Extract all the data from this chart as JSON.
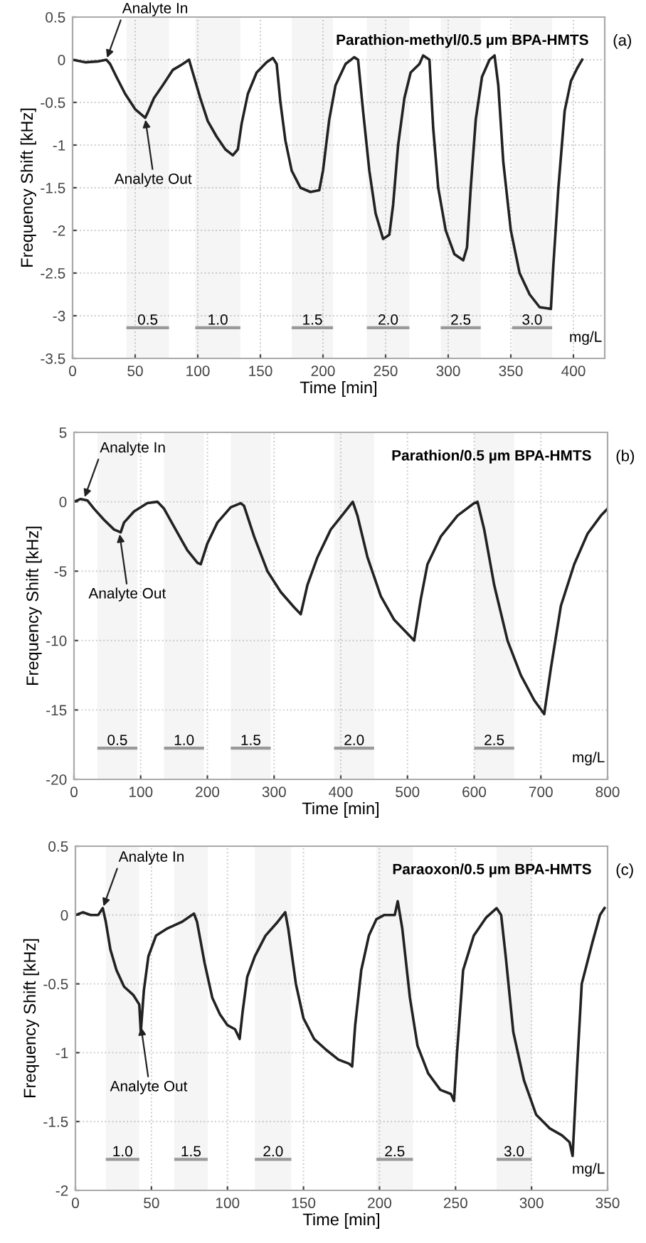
{
  "chart_data": [
    {
      "type": "line",
      "title": "Parathion-methyl/0.5 µm BPA-HMTS",
      "xlabel": "Time [min]",
      "ylabel": "Frequency Shift [kHz]",
      "x": [
        0,
        10,
        20,
        27,
        30,
        35,
        42,
        50,
        58,
        60,
        65,
        72,
        80,
        88,
        93,
        97,
        102,
        108,
        115,
        122,
        128,
        132,
        135,
        140,
        147,
        155,
        160,
        163,
        166,
        170,
        175,
        182,
        190,
        197,
        200,
        205,
        210,
        218,
        225,
        228,
        232,
        237,
        242,
        248,
        253,
        256,
        260,
        265,
        270,
        277,
        280,
        285,
        288,
        292,
        298,
        305,
        312,
        315,
        318,
        322,
        327,
        333,
        337,
        340,
        344,
        350,
        357,
        365,
        373,
        382,
        384,
        388,
        393,
        398,
        403,
        407
      ],
      "series": [
        {
          "color": "#222222",
          "values": [
            0,
            -0.03,
            -0.02,
            0.0,
            -0.05,
            -0.2,
            -0.4,
            -0.58,
            -0.68,
            -0.62,
            -0.45,
            -0.3,
            -0.12,
            -0.05,
            0.0,
            -0.2,
            -0.45,
            -0.72,
            -0.9,
            -1.05,
            -1.12,
            -1.05,
            -0.75,
            -0.4,
            -0.15,
            -0.03,
            0.02,
            -0.05,
            -0.5,
            -0.95,
            -1.3,
            -1.5,
            -1.55,
            -1.53,
            -1.3,
            -0.7,
            -0.3,
            -0.05,
            0.03,
            0.0,
            -0.6,
            -1.3,
            -1.8,
            -2.1,
            -2.05,
            -1.7,
            -1.0,
            -0.45,
            -0.15,
            -0.05,
            0.05,
            0.0,
            -0.8,
            -1.5,
            -2.0,
            -2.28,
            -2.35,
            -2.2,
            -1.5,
            -0.7,
            -0.2,
            0.0,
            0.05,
            -0.3,
            -1.2,
            -2.0,
            -2.5,
            -2.75,
            -2.9,
            -2.92,
            -2.4,
            -1.5,
            -0.6,
            -0.25,
            -0.1,
            0.0
          ]
        }
      ],
      "xlim": [
        0,
        425
      ],
      "xticks": [
        0,
        50,
        100,
        150,
        200,
        250,
        300,
        350,
        400
      ],
      "ylim": [
        -3.5,
        0.5
      ],
      "yticks": [
        -3.5,
        -3,
        -2.5,
        -2,
        -1.5,
        -1,
        -0.5,
        0,
        0.5
      ],
      "bands": [
        {
          "axis": "x",
          "from": 43,
          "to": 77,
          "label": "0.5",
          "color": "#999999"
        },
        {
          "axis": "x",
          "from": 98,
          "to": 134,
          "label": "1.0",
          "color": "#999999"
        },
        {
          "axis": "x",
          "from": 175,
          "to": 208,
          "label": "1.5",
          "color": "#999999"
        },
        {
          "axis": "x",
          "from": 235,
          "to": 269,
          "label": "2.0",
          "color": "#999999"
        },
        {
          "axis": "x",
          "from": 294,
          "to": 326,
          "label": "2.5",
          "color": "#999999"
        },
        {
          "axis": "x",
          "from": 351,
          "to": 383,
          "label": "3.0",
          "color": "#999999"
        }
      ],
      "annotations": [
        "(a)",
        "mg/L",
        {
          "text": "Analyte In",
          "x": 27,
          "y": 0.0
        },
        {
          "text": "Analyte Out",
          "x": 58,
          "y": -0.68
        }
      ],
      "grid": true,
      "legend": false,
      "marker": "none",
      "line_style": "solid"
    },
    {
      "type": "line",
      "title": "Parathion/0.5 µm BPA-HMTS",
      "xlabel": "Time [min]",
      "ylabel": "Frequency Shift [kHz]",
      "x": [
        0,
        10,
        20,
        30,
        45,
        60,
        70,
        75,
        90,
        110,
        125,
        135,
        150,
        170,
        185,
        190,
        200,
        215,
        235,
        250,
        255,
        270,
        290,
        310,
        330,
        340,
        350,
        365,
        385,
        405,
        418,
        425,
        440,
        460,
        480,
        500,
        510,
        520,
        530,
        550,
        575,
        600,
        605,
        615,
        630,
        650,
        670,
        690,
        705,
        715,
        730,
        750,
        770,
        790,
        800
      ],
      "series": [
        {
          "color": "#222222",
          "values": [
            0,
            0.2,
            0.1,
            -0.5,
            -1.3,
            -2,
            -2.2,
            -1.5,
            -0.7,
            -0.1,
            0,
            -0.5,
            -1.8,
            -3.5,
            -4.4,
            -4.5,
            -3.0,
            -1.5,
            -0.4,
            -0.1,
            -0.3,
            -2.5,
            -5,
            -6.5,
            -7.6,
            -8.1,
            -6.0,
            -4,
            -2,
            -0.8,
            0,
            -1,
            -4,
            -6.8,
            -8.5,
            -9.5,
            -10,
            -7,
            -4.5,
            -2.5,
            -1.0,
            -0.1,
            0,
            -2,
            -6,
            -10,
            -12.5,
            -14.3,
            -15.3,
            -12,
            -7.5,
            -4.5,
            -2.3,
            -1.0,
            -0.5
          ]
        }
      ],
      "xlim": [
        0,
        800
      ],
      "xticks": [
        0,
        100,
        200,
        300,
        400,
        500,
        600,
        700,
        800
      ],
      "ylim": [
        -20,
        5
      ],
      "yticks": [
        -20,
        -15,
        -10,
        -5,
        0,
        5
      ],
      "bands": [
        {
          "axis": "x",
          "from": 35,
          "to": 95,
          "label": "0.5",
          "color": "#999999"
        },
        {
          "axis": "x",
          "from": 135,
          "to": 195,
          "label": "1.0",
          "color": "#999999"
        },
        {
          "axis": "x",
          "from": 235,
          "to": 295,
          "label": "1.5",
          "color": "#999999"
        },
        {
          "axis": "x",
          "from": 390,
          "to": 450,
          "label": "2.0",
          "color": "#999999"
        },
        {
          "axis": "x",
          "from": 600,
          "to": 660,
          "label": "2.5",
          "color": "#999999"
        }
      ],
      "annotations": [
        "(b)",
        "mg/L",
        {
          "text": "Analyte In",
          "x": 15,
          "y": 0.2
        },
        {
          "text": "Analyte Out",
          "x": 68,
          "y": -2.2
        }
      ],
      "grid": true,
      "legend": false,
      "marker": "none",
      "line_style": "solid"
    },
    {
      "type": "line",
      "title": "Paraoxon/0.5 µm BPA-HMTS",
      "xlabel": "Time [min]",
      "ylabel": "Frequency Shift [kHz]",
      "x": [
        0,
        5,
        10,
        15,
        18,
        20,
        23,
        27,
        32,
        38,
        42,
        43,
        45,
        48,
        53,
        60,
        70,
        78,
        80,
        85,
        90,
        95,
        100,
        105,
        108,
        110,
        113,
        118,
        125,
        133,
        138,
        140,
        145,
        150,
        157,
        165,
        173,
        180,
        182,
        184,
        188,
        193,
        198,
        203,
        210,
        212,
        215,
        220,
        225,
        232,
        240,
        247,
        249,
        251,
        255,
        262,
        270,
        277,
        280,
        283,
        288,
        295,
        303,
        312,
        320,
        325,
        327,
        330,
        333,
        340,
        345,
        348
      ],
      "series": [
        {
          "color": "#222222",
          "values": [
            0,
            0.02,
            0,
            0,
            0.05,
            -0.05,
            -0.25,
            -0.4,
            -0.52,
            -0.58,
            -0.65,
            -0.85,
            -0.55,
            -0.3,
            -0.15,
            -0.1,
            -0.05,
            0.01,
            -0.05,
            -0.35,
            -0.6,
            -0.72,
            -0.8,
            -0.83,
            -0.9,
            -0.7,
            -0.45,
            -0.3,
            -0.15,
            -0.05,
            0.02,
            -0.1,
            -0.5,
            -0.75,
            -0.9,
            -0.98,
            -1.05,
            -1.08,
            -1.1,
            -0.8,
            -0.4,
            -0.15,
            -0.03,
            0,
            0,
            0.1,
            -0.1,
            -0.6,
            -0.95,
            -1.15,
            -1.27,
            -1.3,
            -1.35,
            -1.0,
            -0.4,
            -0.15,
            -0.02,
            0.05,
            0,
            -0.3,
            -0.85,
            -1.2,
            -1.45,
            -1.55,
            -1.6,
            -1.65,
            -1.75,
            -1.1,
            -0.5,
            -0.2,
            0,
            0.05
          ]
        }
      ],
      "xlim": [
        0,
        350
      ],
      "xticks": [
        0,
        50,
        100,
        150,
        200,
        250,
        300,
        350
      ],
      "ylim": [
        -2,
        0.5
      ],
      "yticks": [
        -2,
        -1.5,
        -1,
        -0.5,
        0,
        0.5
      ],
      "bands": [
        {
          "axis": "x",
          "from": 20,
          "to": 42,
          "label": "1.0",
          "color": "#999999"
        },
        {
          "axis": "x",
          "from": 65,
          "to": 87,
          "label": "1.5",
          "color": "#999999"
        },
        {
          "axis": "x",
          "from": 118,
          "to": 142,
          "label": "2.0",
          "color": "#999999"
        },
        {
          "axis": "x",
          "from": 198,
          "to": 222,
          "label": "2.5",
          "color": "#999999"
        },
        {
          "axis": "x",
          "from": 277,
          "to": 300,
          "label": "3.0",
          "color": "#999999"
        }
      ],
      "annotations": [
        "(c)",
        "mg/L",
        {
          "text": "Analyte In",
          "x": 18,
          "y": 0.05
        },
        {
          "text": "Analyte Out",
          "x": 43,
          "y": -0.8
        }
      ],
      "grid": true,
      "legend": false,
      "marker": "none",
      "line_style": "solid"
    }
  ]
}
